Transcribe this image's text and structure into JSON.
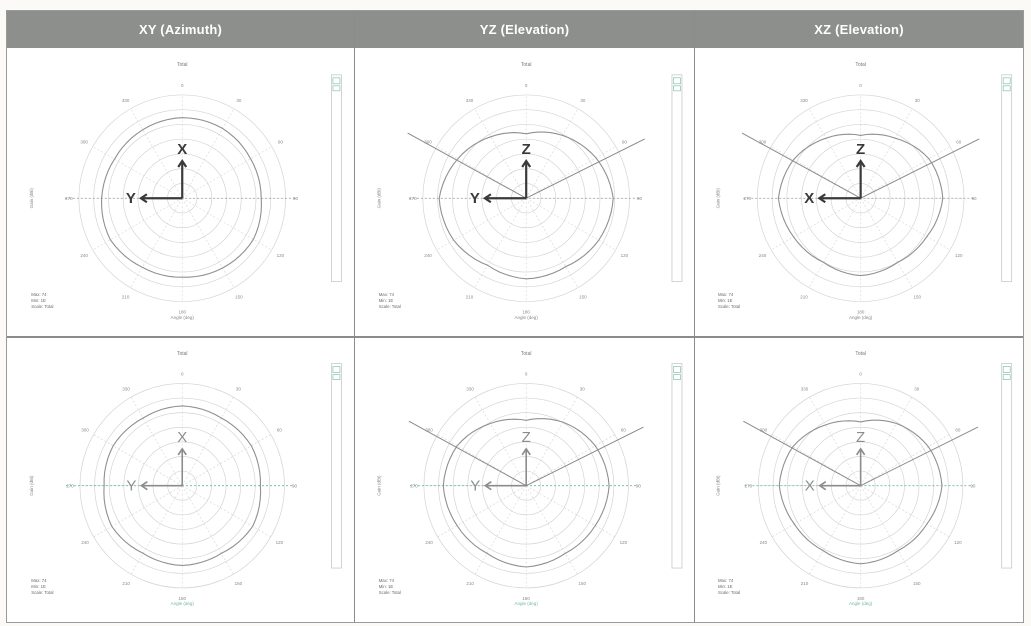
{
  "headers": [
    "XY (Azimuth)",
    "YZ (Elevation)",
    "XZ (Elevation)"
  ],
  "plot_labels": {
    "title": "Total",
    "xlabel": "Angle (deg)",
    "ylabel": "Gain (dBi)",
    "angle_ticks": [
      "0",
      "30",
      "60",
      "90",
      "120",
      "150",
      "180",
      "210",
      "240",
      "270",
      "300",
      "330"
    ]
  },
  "panels": [
    {
      "id": "xy-top",
      "axes": {
        "up": "X",
        "left": "Y"
      },
      "stats": [
        "Max: 74",
        "Min: 1E",
        "Scale: Total"
      ],
      "antenna_lines": false,
      "shape": [
        1.0,
        1.0,
        0.98,
        0.98,
        1.02,
        1.0,
        0.98,
        0.99,
        1.03,
        1.0,
        0.97,
        0.98
      ],
      "tone": "dark"
    },
    {
      "id": "yz-top",
      "axes": {
        "up": "Z",
        "left": "Y"
      },
      "stats": [
        "Max: 74",
        "Min: 1E",
        "Scale: Total"
      ],
      "antenna_lines": true,
      "shape": [
        0.8,
        0.9,
        1.0,
        1.08,
        1.04,
        0.98,
        1.0,
        0.96,
        1.04,
        1.08,
        0.98,
        0.88
      ],
      "tone": "dark"
    },
    {
      "id": "xz-top",
      "axes": {
        "up": "Z",
        "left": "X"
      },
      "stats": [
        "Max: 74",
        "Min: 1E",
        "Scale: Total"
      ],
      "antenna_lines": true,
      "shape": [
        0.78,
        0.86,
        0.98,
        1.02,
        0.95,
        0.92,
        0.96,
        0.92,
        0.96,
        1.02,
        0.96,
        0.86
      ],
      "tone": "dark"
    },
    {
      "id": "xy-bottom",
      "axes": {
        "up": "X",
        "left": "Y"
      },
      "stats": [
        "Max: 74",
        "Min: 1E",
        "Scale: Total"
      ],
      "antenna_lines": false,
      "shape": [
        1.0,
        0.98,
        1.0,
        0.98,
        1.02,
        0.98,
        1.0,
        0.98,
        1.02,
        0.98,
        1.0,
        0.98
      ],
      "tone": "light"
    },
    {
      "id": "yz-bottom",
      "axes": {
        "up": "Z",
        "left": "Y"
      },
      "stats": [
        "Max: 74",
        "Min: 1E",
        "Scale: Total"
      ],
      "antenna_lines": true,
      "shape": [
        0.82,
        0.92,
        1.0,
        1.04,
        1.0,
        0.98,
        1.02,
        0.98,
        1.0,
        1.04,
        1.0,
        0.9
      ],
      "tone": "light"
    },
    {
      "id": "xz-bottom",
      "axes": {
        "up": "Z",
        "left": "X"
      },
      "stats": [
        "Max: 74",
        "Min: 1E",
        "Scale: Total"
      ],
      "antenna_lines": true,
      "shape": [
        0.8,
        0.9,
        0.98,
        1.02,
        0.96,
        0.94,
        0.98,
        0.94,
        0.96,
        1.02,
        0.98,
        0.88
      ],
      "tone": "light"
    }
  ],
  "colors": {
    "header_bg": "#8d8f8c",
    "grid": "#d4d6d2",
    "trace": "#8e918e",
    "axis_dark": "#3a3a3a",
    "axis_light": "#8c8c8c",
    "accent": "#71b8a2"
  }
}
